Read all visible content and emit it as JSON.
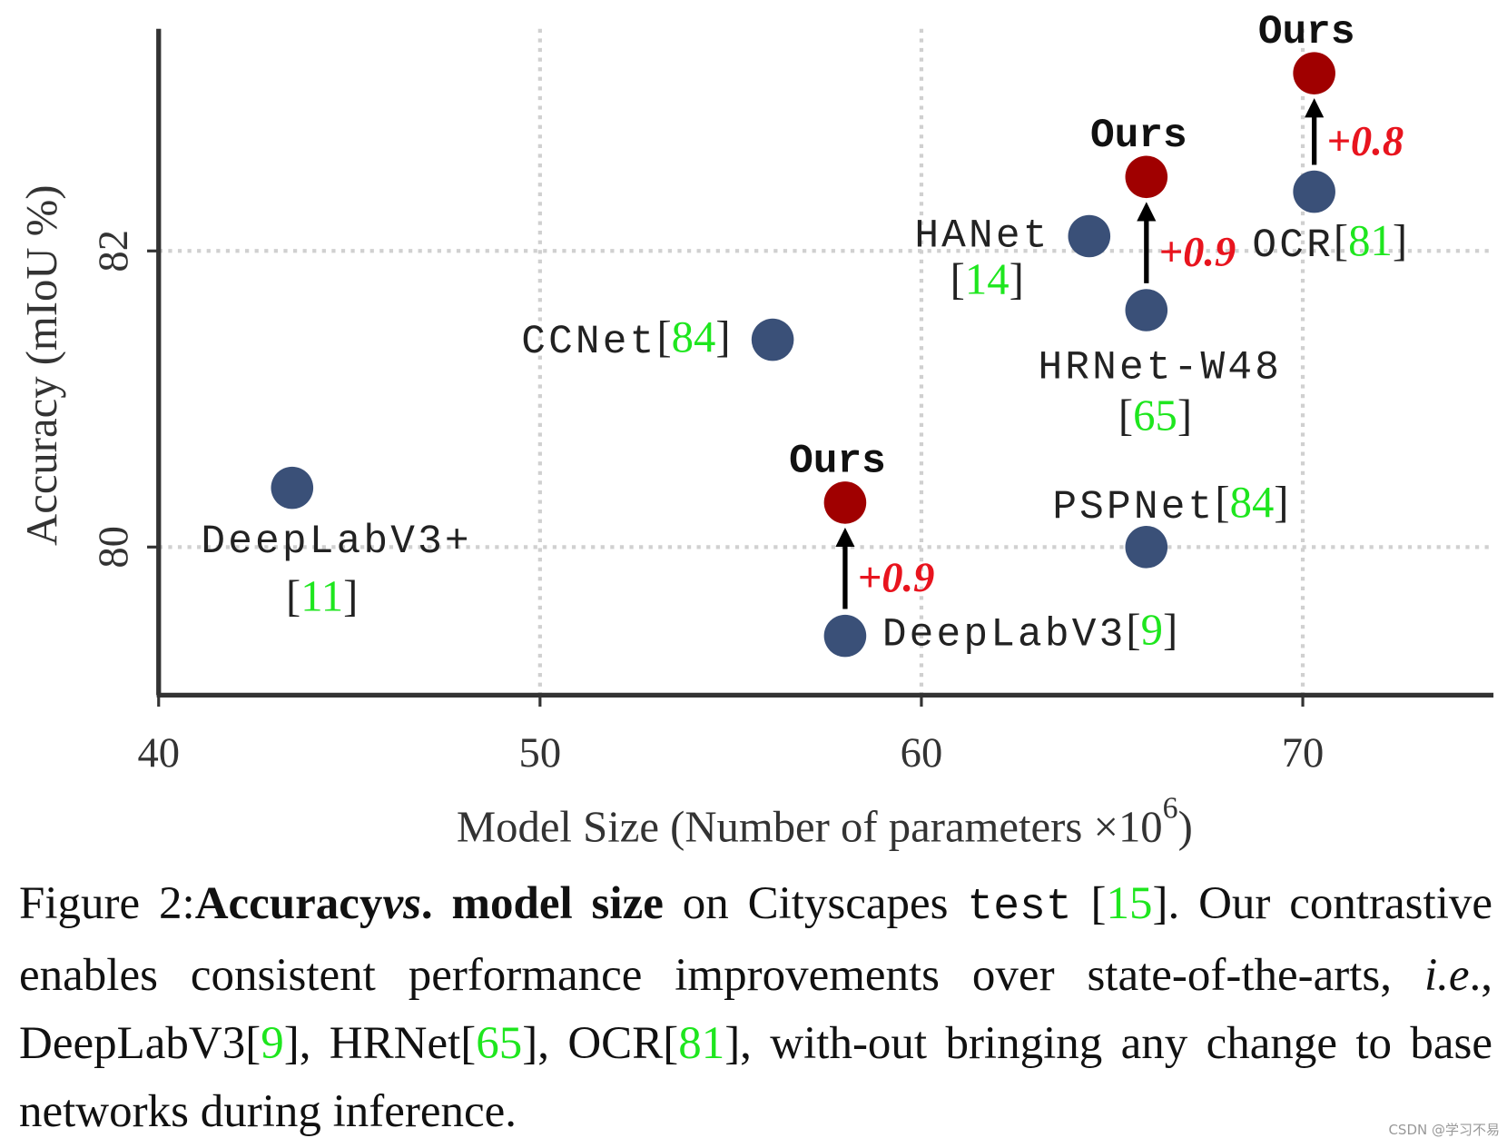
{
  "chart_data": {
    "type": "scatter",
    "xlabel": [
      "Model Size (Number of parameters ×10",
      "6",
      ")"
    ],
    "ylabel": "Accuracy (mIoU %)",
    "xlim": [
      40,
      75
    ],
    "ylim": [
      79,
      83.5
    ],
    "xticks": [
      40,
      50,
      60,
      70
    ],
    "yticks": [
      80,
      82
    ],
    "grid": true,
    "color": "#3a5078",
    "ours_color": "#a00000",
    "gain_color": "#e8141e",
    "ref_color": "#1ee61e",
    "points": [
      {
        "name": "DeepLabV3+",
        "ref": "[11]",
        "x": 43.5,
        "y": 80.4
      },
      {
        "name": "CCNet",
        "ref": "[84]",
        "x": 56.1,
        "y": 81.4
      },
      {
        "name": "DeepLabV3",
        "ref": "[9]",
        "x": 58.0,
        "y": 79.4,
        "ours": {
          "name": "Ours",
          "y": 80.3,
          "gain": "+0.9"
        }
      },
      {
        "name": "HANet",
        "ref": "[14]",
        "x": 64.4,
        "y": 82.1
      },
      {
        "name": "HRNet-W48",
        "ref": "[65]",
        "x": 65.9,
        "y": 81.6,
        "ours": {
          "name": "Ours",
          "y": 82.5,
          "gain": "+0.9"
        }
      },
      {
        "name": "PSPNet",
        "ref": "[84]",
        "x": 65.9,
        "y": 80.0
      },
      {
        "name": "OCR",
        "ref": "[81]",
        "x": 70.3,
        "y": 82.4,
        "ours": {
          "name": "Ours",
          "y": 83.2,
          "gain": "+0.8"
        }
      }
    ]
  },
  "caption": {
    "parts": [
      "Figure 2:",
      "Accuracy",
      "vs",
      ". model size",
      " on Cityscapes ",
      "test",
      " [",
      "15",
      "]. Our contrastive enables consistent performance improvements over state-of-the-arts, ",
      "i.e",
      "., DeepLabV3[",
      "9",
      "], HRNet[",
      "65",
      "], OCR[",
      "81",
      "], with-out bringing any change to base networks during inference."
    ]
  },
  "watermark": "CSDN @学习不易"
}
